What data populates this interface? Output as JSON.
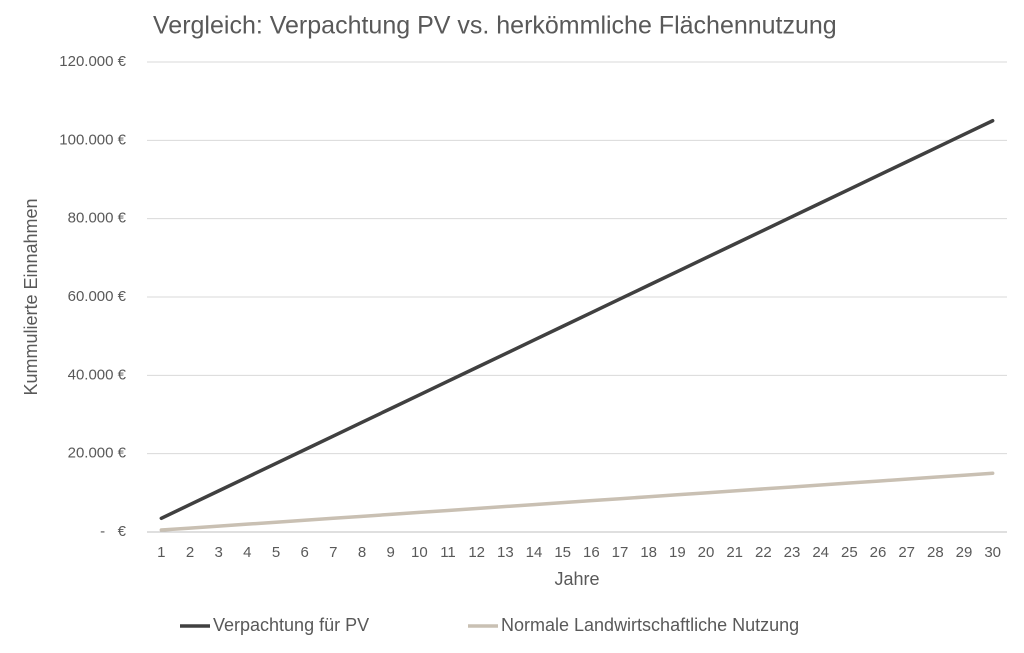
{
  "chart_data": {
    "type": "line",
    "title": "Vergleich: Verpachtung PV vs. herkömmliche Flächennutzung",
    "x_label": "Jahre",
    "y_label": "Kummulierte Einnahmen",
    "categories": [
      "1",
      "2",
      "3",
      "4",
      "5",
      "6",
      "7",
      "8",
      "9",
      "10",
      "11",
      "12",
      "13",
      "14",
      "15",
      "16",
      "17",
      "18",
      "19",
      "20",
      "21",
      "22",
      "23",
      "24",
      "25",
      "26",
      "27",
      "28",
      "29",
      "30"
    ],
    "series": [
      {
        "name": "Verpachtung für PV",
        "color": "#404040",
        "values": [
          3500,
          7000,
          10500,
          14000,
          17500,
          21000,
          24500,
          28000,
          31500,
          35000,
          38500,
          42000,
          45500,
          49000,
          52500,
          56000,
          59500,
          63000,
          66500,
          70000,
          73500,
          77000,
          80500,
          84000,
          87500,
          91000,
          94500,
          98000,
          101500,
          105000
        ]
      },
      {
        "name": "Normale Landwirtschaftliche Nutzung",
        "color": "#c9c0b3",
        "values": [
          500,
          1000,
          1500,
          2000,
          2500,
          3000,
          3500,
          4000,
          4500,
          5000,
          5500,
          6000,
          6500,
          7000,
          7500,
          8000,
          8500,
          9000,
          9500,
          10000,
          10500,
          11000,
          11500,
          12000,
          12500,
          13000,
          13500,
          14000,
          14500,
          15000
        ]
      }
    ],
    "ylim": [
      0,
      120000
    ],
    "yticks": [
      {
        "value": 0,
        "label": "-   €"
      },
      {
        "value": 20000,
        "label": "20.000 €"
      },
      {
        "value": 40000,
        "label": "40.000 €"
      },
      {
        "value": 60000,
        "label": "60.000 €"
      },
      {
        "value": 80000,
        "label": "80.000 €"
      },
      {
        "value": 100000,
        "label": "100.000 €"
      },
      {
        "value": 120000,
        "label": "120.000 €"
      }
    ],
    "grid": true,
    "legend": "bottom"
  }
}
